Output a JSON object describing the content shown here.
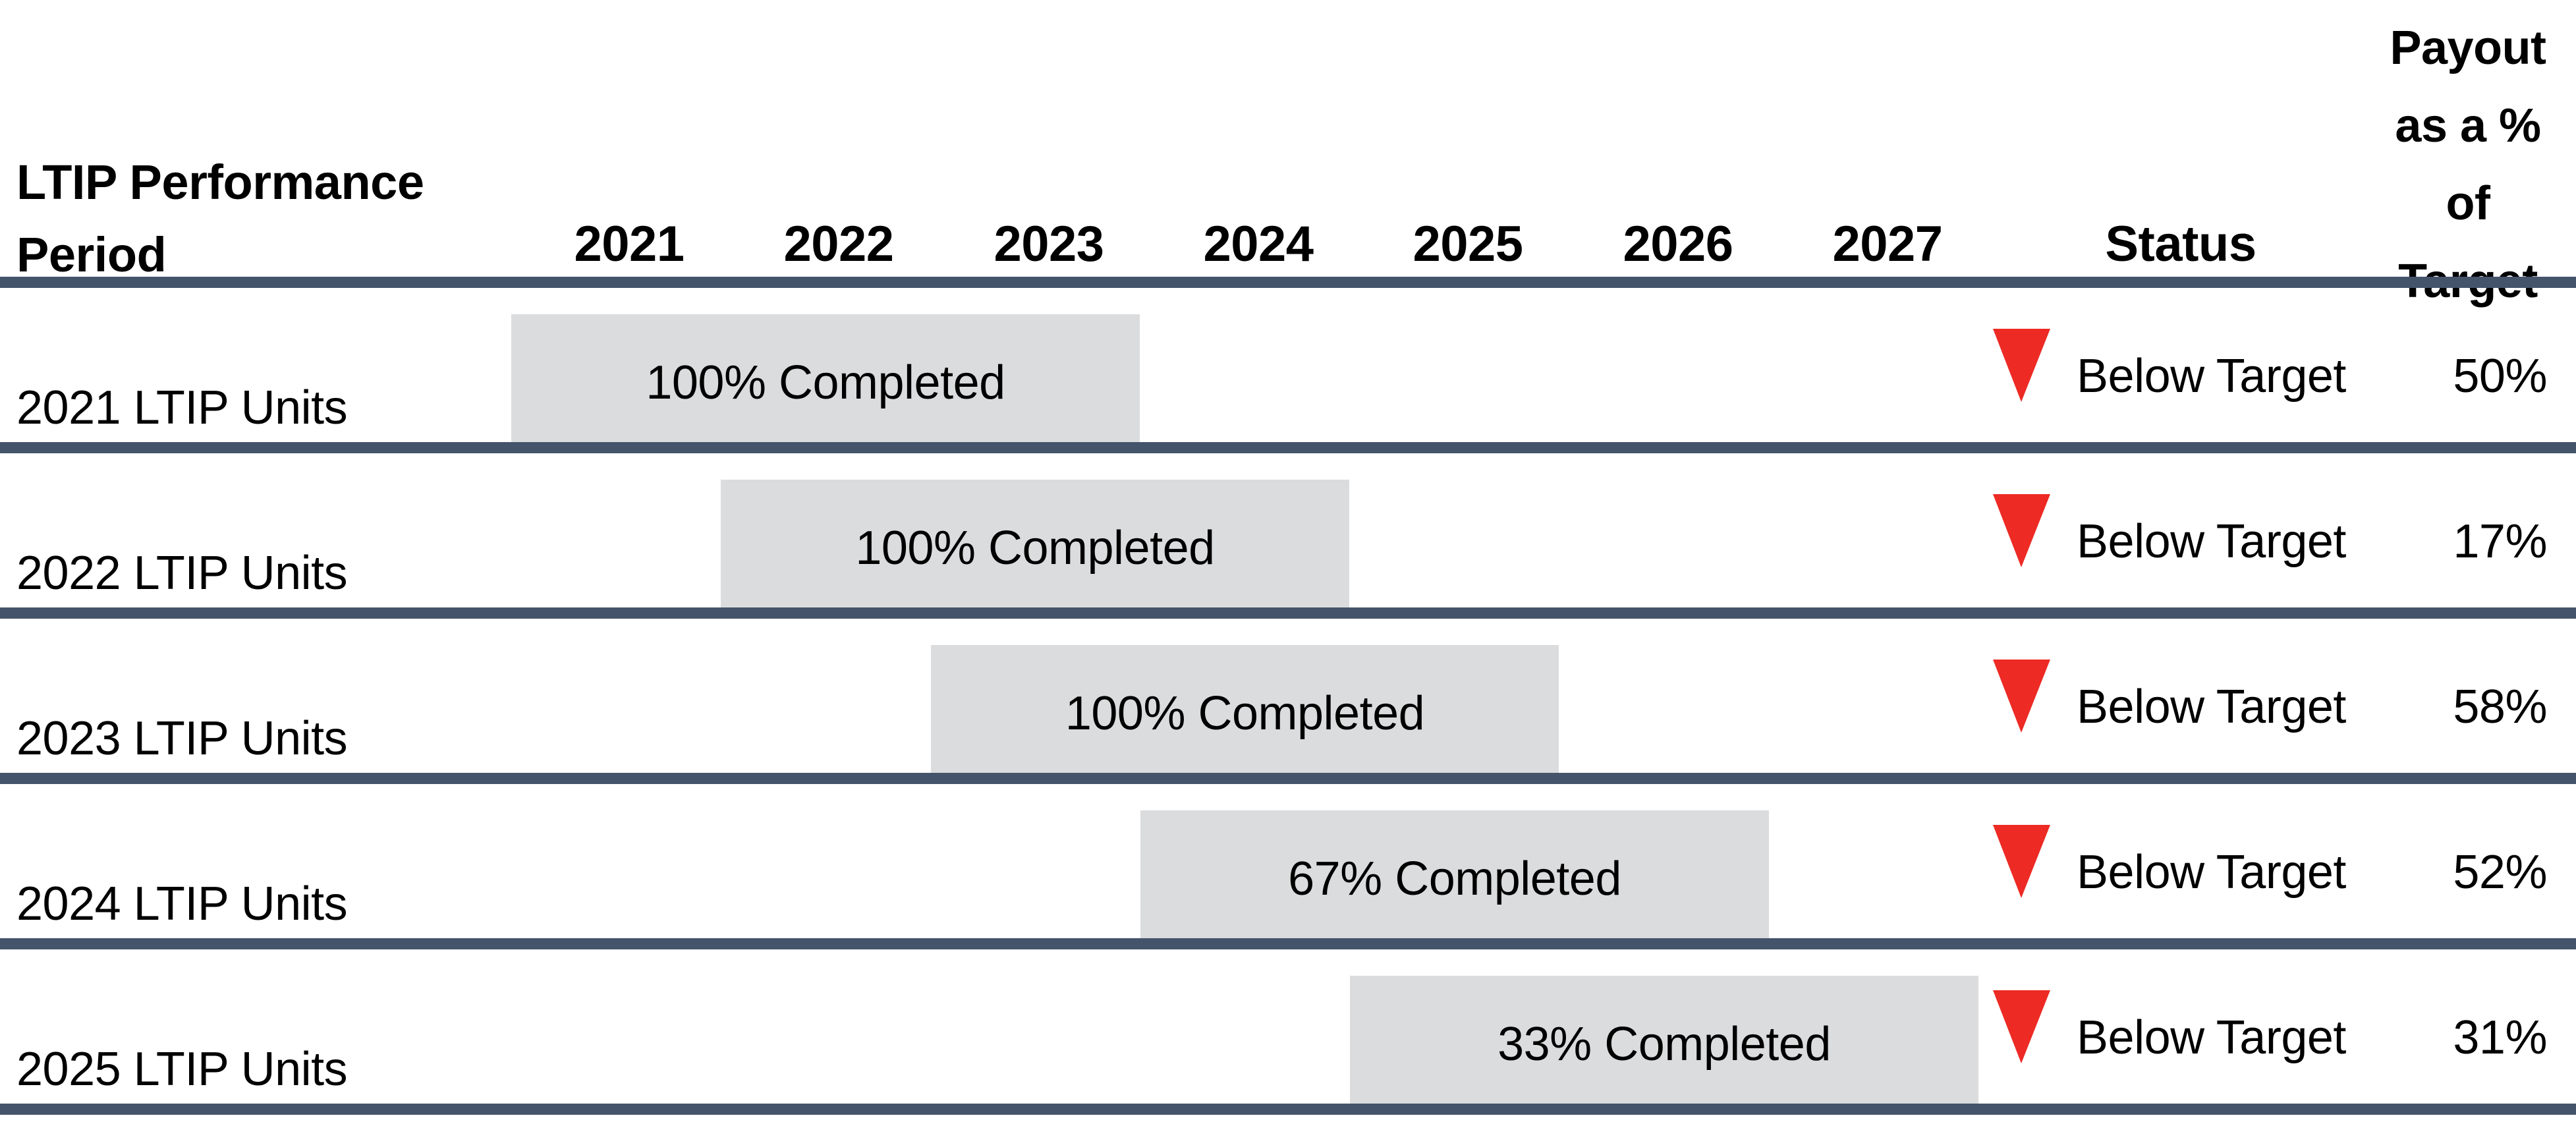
{
  "page": {
    "title_lines": [
      "LTIP Performance",
      "Period"
    ],
    "years": [
      "2021",
      "2022",
      "2023",
      "2024",
      "2025",
      "2026",
      "2027"
    ],
    "status_header": "Status",
    "payout_header_lines": [
      "Payout",
      "as a %",
      "of",
      "Target"
    ],
    "rows": [
      {
        "label": "2021 LTIP Units",
        "bar_text": "100% Completed",
        "bar_start_year": "2021",
        "bar_end_year": "2023",
        "status_icon": "down-triangle-icon",
        "status": "Below Target",
        "payout": "50%"
      },
      {
        "label": "2022 LTIP Units",
        "bar_text": "100% Completed",
        "bar_start_year": "2022",
        "bar_end_year": "2024",
        "status_icon": "down-triangle-icon",
        "status": "Below Target",
        "payout": "17%"
      },
      {
        "label": "2023 LTIP Units",
        "bar_text": "100% Completed",
        "bar_start_year": "2023",
        "bar_end_year": "2025",
        "status_icon": "down-triangle-icon",
        "status": "Below Target",
        "payout": "58%"
      },
      {
        "label": "2024 LTIP Units",
        "bar_text": "67% Completed",
        "bar_start_year": "2024",
        "bar_end_year": "2026",
        "status_icon": "down-triangle-icon",
        "status": "Below Target",
        "payout": "52%"
      },
      {
        "label": "2025 LTIP Units",
        "bar_text": "33% Completed",
        "bar_start_year": "2025",
        "bar_end_year": "2027",
        "status_icon": "down-triangle-icon",
        "status": "Below Target",
        "payout": "31%"
      }
    ],
    "colors": {
      "divider": "#44546A",
      "bar_fill": "#DBDCDD",
      "status_red": "#ED2A24",
      "text": "#000000"
    }
  },
  "chart_data": {
    "type": "table",
    "title": "LTIP Performance Period",
    "columns": [
      "LTIP Performance Period",
      "2021",
      "2022",
      "2023",
      "2024",
      "2025",
      "2026",
      "2027",
      "Status",
      "Payout as a % of Target"
    ],
    "x_range": [
      2021,
      2027
    ],
    "rows": [
      {
        "period": "2021 LTIP Units",
        "span_years": [
          2021,
          2023
        ],
        "completed_pct": 100,
        "status": "Below Target",
        "payout_pct_of_target": 50
      },
      {
        "period": "2022 LTIP Units",
        "span_years": [
          2022,
          2024
        ],
        "completed_pct": 100,
        "status": "Below Target",
        "payout_pct_of_target": 17
      },
      {
        "period": "2023 LTIP Units",
        "span_years": [
          2023,
          2025
        ],
        "completed_pct": 100,
        "status": "Below Target",
        "payout_pct_of_target": 58
      },
      {
        "period": "2024 LTIP Units",
        "span_years": [
          2024,
          2026
        ],
        "completed_pct": 67,
        "status": "Below Target",
        "payout_pct_of_target": 52
      },
      {
        "period": "2025 LTIP Units",
        "span_years": [
          2025,
          2027
        ],
        "completed_pct": 33,
        "status": "Below Target",
        "payout_pct_of_target": 31
      }
    ],
    "legend": "none",
    "grid": false
  }
}
